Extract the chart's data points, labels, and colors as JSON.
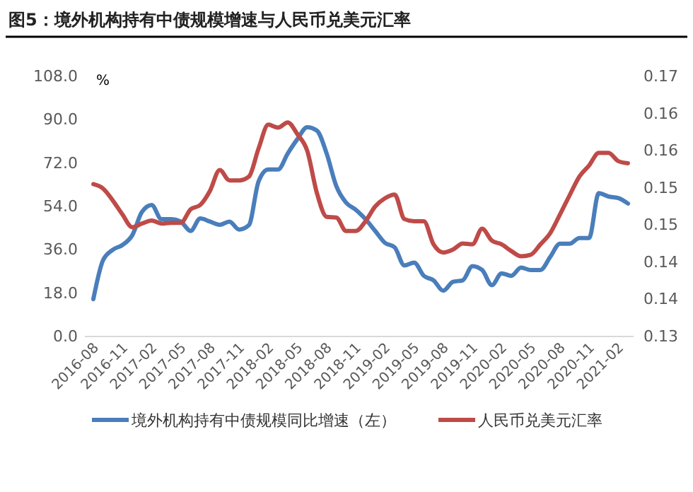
{
  "chart_data": {
    "type": "line",
    "title": "图5：境外机构持有中债规模增速与人民币兑美元汇率",
    "ylabel": "%",
    "categories": [
      "2016-08",
      null,
      null,
      "2016-11",
      null,
      null,
      "2017-02",
      null,
      null,
      "2017-05",
      null,
      null,
      "2017-08",
      null,
      null,
      "2017-11",
      null,
      null,
      "2018-02",
      null,
      null,
      "2018-05",
      null,
      null,
      "2018-08",
      null,
      null,
      "2018-11",
      null,
      null,
      "2019-02",
      null,
      null,
      "2019-05",
      null,
      null,
      "2019-08",
      null,
      null,
      "2019-11",
      null,
      null,
      "2020-02",
      null,
      null,
      "2020-05",
      null,
      null,
      "2020-08",
      null,
      null,
      "2020-11",
      null,
      null,
      "2021-02",
      null
    ],
    "series": [
      {
        "name": "境外机构持有中债规模同比增速（左）",
        "color": "#4a7ebb",
        "values": [
          15.5,
          31.7,
          36,
          38,
          42,
          51.7,
          54.6,
          48.7,
          48.7,
          47.7,
          43.8,
          49,
          47.7,
          46.4,
          47.7,
          44.4,
          46.2,
          64.4,
          69.3,
          69.3,
          76,
          82,
          86.9,
          85.5,
          76,
          62.4,
          55.6,
          52.6,
          48.7,
          43.8,
          38.9,
          37,
          29.5,
          30.7,
          25.2,
          23.3,
          19,
          22.7,
          23.3,
          29.2,
          27.6,
          21.3,
          26.2,
          25.2,
          28.6,
          27.6,
          27.6,
          33,
          38.5,
          38.5,
          40.9,
          40.9,
          59.5,
          58.1,
          57.5,
          55.2
        ]
      },
      {
        "name": "人民币兑美元汇率",
        "color": "#be4b48",
        "axis": "y2",
        "values": [
          0.1555,
          0.1549,
          0.1533,
          0.1514,
          0.1497,
          0.1502,
          0.1506,
          0.1502,
          0.1503,
          0.1503,
          0.1521,
          0.1527,
          0.1546,
          0.1574,
          0.156,
          0.156,
          0.1565,
          0.1603,
          0.1635,
          0.1631,
          0.1638,
          0.1622,
          0.16,
          0.1543,
          0.1511,
          0.151,
          0.1492,
          0.1492,
          0.1505,
          0.1525,
          0.1536,
          0.1541,
          0.1508,
          0.1505,
          0.1505,
          0.1474,
          0.1463,
          0.1467,
          0.1475,
          0.1474,
          0.1495,
          0.1479,
          0.1474,
          0.1465,
          0.1458,
          0.146,
          0.1474,
          0.1489,
          0.1514,
          0.154,
          0.1565,
          0.158,
          0.1597,
          0.1597,
          0.1586,
          0.1583
        ]
      }
    ],
    "ylim": [
      0,
      108
    ],
    "yticks": [
      {
        "value": 0,
        "label": "0.0"
      },
      {
        "value": 18,
        "label": "18.0"
      },
      {
        "value": 36,
        "label": "36.0"
      },
      {
        "value": 54,
        "label": "54.0"
      },
      {
        "value": 72,
        "label": "72.0"
      },
      {
        "value": 90,
        "label": "90.0"
      },
      {
        "value": 108,
        "label": "108.0"
      }
    ],
    "y2lim": [
      0.135,
      0.17
    ],
    "y2ticks": [
      {
        "value": 0.135,
        "label": "0.13"
      },
      {
        "value": 0.14,
        "label": "0.14"
      },
      {
        "value": 0.145,
        "label": "0.14"
      },
      {
        "value": 0.15,
        "label": "0.15"
      },
      {
        "value": 0.155,
        "label": "0.15"
      },
      {
        "value": 0.16,
        "label": "0.16"
      },
      {
        "value": 0.165,
        "label": "0.16"
      },
      {
        "value": 0.17,
        "label": "0.17"
      }
    ],
    "legend": "bottom",
    "grid": false
  }
}
